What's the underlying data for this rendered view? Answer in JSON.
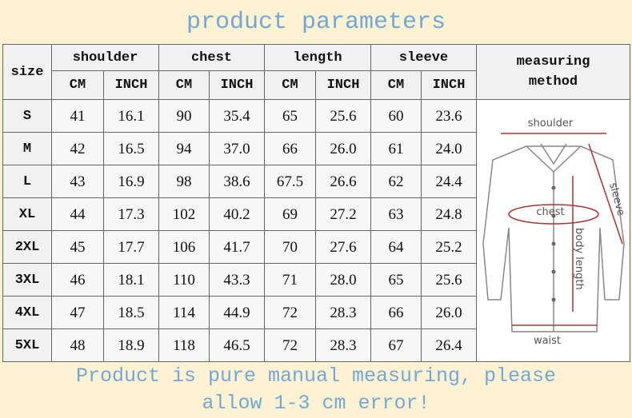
{
  "title": "product parameters",
  "table": {
    "header": {
      "size": "size",
      "groups": [
        "shoulder",
        "chest",
        "length",
        "sleeve"
      ],
      "units": [
        "CM",
        "INCH"
      ],
      "method": [
        "measuring",
        "method"
      ]
    },
    "rows": [
      [
        "S",
        "41",
        "16.1",
        "90",
        "35.4",
        "65",
        "25.6",
        "60",
        "23.6"
      ],
      [
        "M",
        "42",
        "16.5",
        "94",
        "37.0",
        "66",
        "26.0",
        "61",
        "24.0"
      ],
      [
        "L",
        "43",
        "16.9",
        "98",
        "38.6",
        "67.5",
        "26.6",
        "62",
        "24.4"
      ],
      [
        "XL",
        "44",
        "17.3",
        "102",
        "40.2",
        "69",
        "27.2",
        "63",
        "24.8"
      ],
      [
        "2XL",
        "45",
        "17.7",
        "106",
        "41.7",
        "70",
        "27.6",
        "64",
        "25.2"
      ],
      [
        "3XL",
        "46",
        "18.1",
        "110",
        "43.3",
        "71",
        "28.0",
        "65",
        "25.6"
      ],
      [
        "4XL",
        "47",
        "18.5",
        "114",
        "44.9",
        "72",
        "28.3",
        "66",
        "26.0"
      ],
      [
        "5XL",
        "48",
        "18.9",
        "118",
        "46.5",
        "72",
        "28.3",
        "67",
        "26.4"
      ]
    ]
  },
  "diagram": {
    "shoulder": "shoulder",
    "chest": "chest",
    "sleeve": "sleeve",
    "body_length": "body length",
    "waist": "waist"
  },
  "footer": [
    "Product is pure manual measuring, please",
    "allow 1-3 cm error!"
  ]
}
